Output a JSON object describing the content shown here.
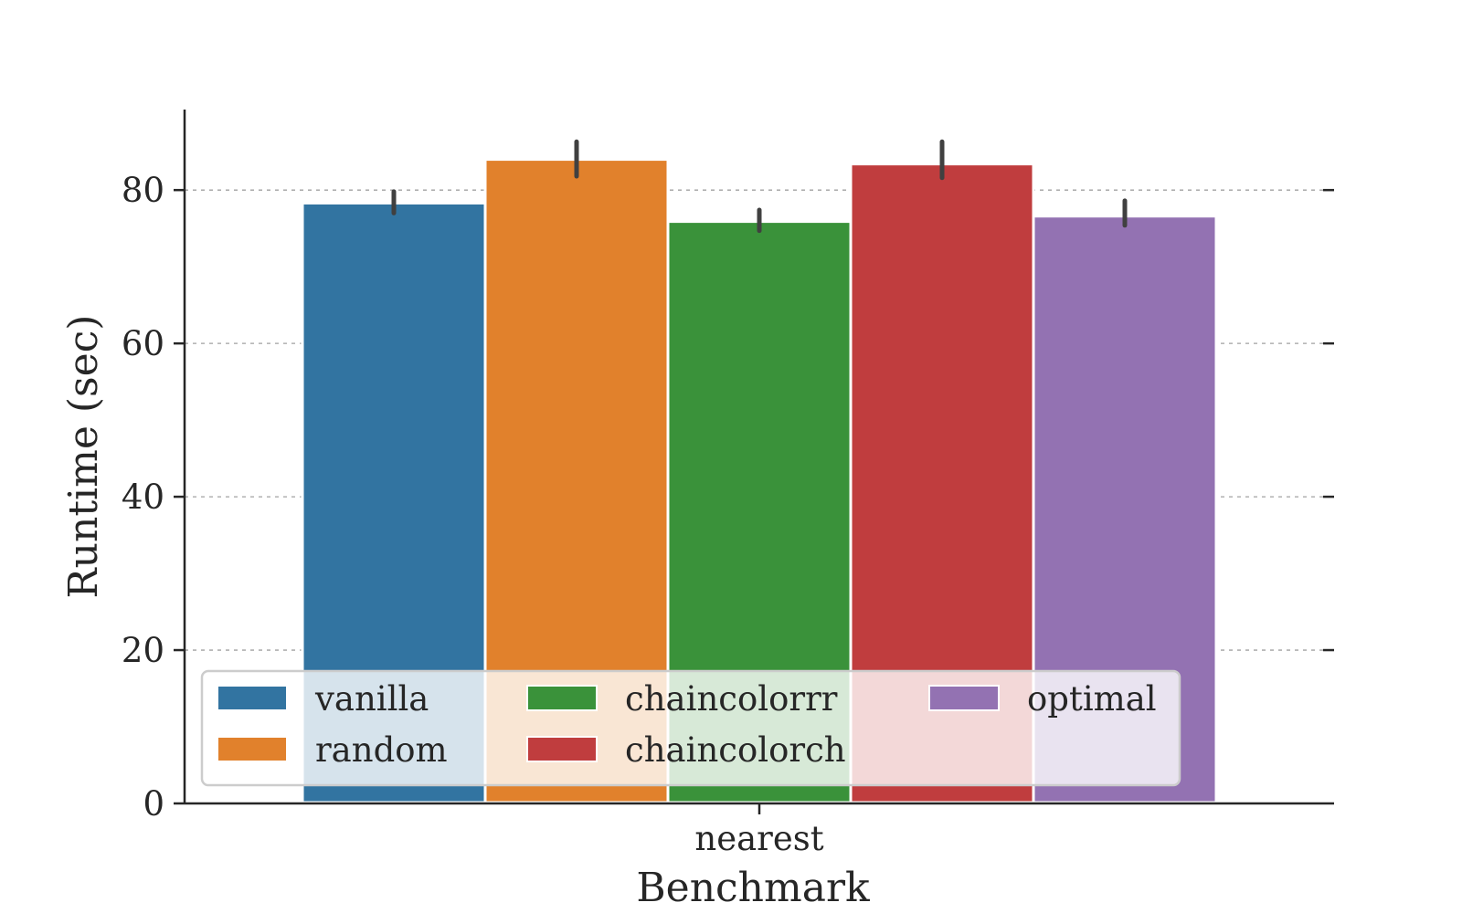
{
  "chart_data": {
    "type": "bar",
    "categories": [
      "nearest"
    ],
    "xlabel": "Benchmark",
    "ylabel": "Runtime (sec)",
    "ylim": [
      0,
      90.5
    ],
    "yticks": [
      0,
      20,
      40,
      60,
      80
    ],
    "grid": "horizontal dashed",
    "legend_position": "lower-left",
    "legend_columns": 3,
    "series": [
      {
        "name": "vanilla",
        "color": "#3274a1",
        "values": [
          78.3
        ],
        "error": [
          [
            77.0,
            79.8
          ]
        ]
      },
      {
        "name": "random",
        "color": "#e1812c",
        "values": [
          84.0
        ],
        "error": [
          [
            81.8,
            86.3
          ]
        ]
      },
      {
        "name": "chaincolorrr",
        "color": "#3a923a",
        "values": [
          75.9
        ],
        "error": [
          [
            74.7,
            77.4
          ]
        ]
      },
      {
        "name": "chaincolorch",
        "color": "#c03d3e",
        "values": [
          83.4
        ],
        "error": [
          [
            81.6,
            86.3
          ]
        ]
      },
      {
        "name": "optimal",
        "color": "#9372b2",
        "values": [
          76.6
        ],
        "error": [
          [
            75.4,
            78.6
          ]
        ]
      }
    ]
  }
}
